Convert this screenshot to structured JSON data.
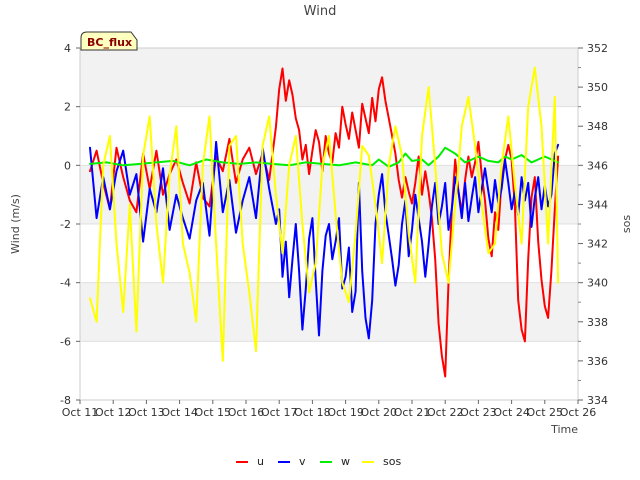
{
  "chart_data": {
    "type": "line",
    "title": "Wind",
    "site_label": "BC_flux",
    "xlabel": "Time",
    "ylabel": "Wind (m/s)",
    "y2label": "sos",
    "xlim": [
      11,
      26
    ],
    "ylim": [
      -8,
      4
    ],
    "y2lim": [
      334,
      352
    ],
    "x_ticks": [
      11,
      12,
      13,
      14,
      15,
      16,
      17,
      18,
      19,
      20,
      21,
      22,
      23,
      24,
      25,
      26
    ],
    "x_tick_labels": [
      "Oct 11",
      "Oct 12",
      "Oct 13",
      "Oct 14",
      "Oct 15",
      "Oct 16",
      "Oct 17",
      "Oct 18",
      "Oct 19",
      "Oct 20",
      "Oct 21",
      "Oct 22",
      "Oct 23",
      "Oct 24",
      "Oct 25",
      "Oct 26"
    ],
    "y_ticks": [
      -8,
      -6,
      -4,
      -2,
      0,
      2,
      4
    ],
    "y2_ticks": [
      334,
      336,
      338,
      340,
      342,
      344,
      346,
      348,
      350,
      352
    ],
    "grid_bands": true,
    "legend_position": "bottom-center",
    "series": [
      {
        "name": "u",
        "axis": "left",
        "color": "#ff0000",
        "x": [
          11.3,
          11.5,
          11.7,
          11.9,
          12.1,
          12.3,
          12.5,
          12.7,
          12.9,
          13.1,
          13.3,
          13.5,
          13.7,
          13.9,
          14.1,
          14.3,
          14.5,
          14.7,
          14.9,
          15.1,
          15.3,
          15.5,
          15.7,
          15.9,
          16.1,
          16.3,
          16.5,
          16.7,
          16.9,
          17.0,
          17.1,
          17.2,
          17.3,
          17.4,
          17.5,
          17.6,
          17.7,
          17.8,
          17.9,
          18.0,
          18.1,
          18.2,
          18.3,
          18.4,
          18.5,
          18.6,
          18.7,
          18.8,
          18.9,
          19.0,
          19.1,
          19.2,
          19.3,
          19.4,
          19.5,
          19.6,
          19.7,
          19.8,
          19.9,
          20.0,
          20.1,
          20.2,
          20.3,
          20.4,
          20.5,
          20.6,
          20.7,
          20.8,
          20.9,
          21.0,
          21.1,
          21.2,
          21.3,
          21.4,
          21.5,
          21.6,
          21.7,
          21.8,
          21.9,
          22.0,
          22.1,
          22.2,
          22.3,
          22.4,
          22.5,
          22.6,
          22.7,
          22.8,
          22.9,
          23.0,
          23.1,
          23.2,
          23.3,
          23.4,
          23.5,
          23.6,
          23.7,
          23.8,
          23.9,
          24.0,
          24.1,
          24.2,
          24.3,
          24.4,
          24.5,
          24.6,
          24.7,
          24.8,
          24.9,
          25.0,
          25.1,
          25.2,
          25.3,
          25.4
        ],
        "values": [
          -0.2,
          0.5,
          -0.6,
          -1.5,
          0.6,
          -0.4,
          -1.2,
          -1.6,
          0.4,
          -0.8,
          0.5,
          -1.0,
          -0.3,
          0.2,
          -0.6,
          -1.3,
          0.1,
          -1.1,
          -1.4,
          0.3,
          -0.2,
          0.9,
          -0.6,
          0.2,
          0.6,
          -0.3,
          0.4,
          -0.5,
          1.3,
          2.6,
          3.3,
          2.2,
          2.9,
          2.4,
          1.6,
          1.2,
          0.2,
          0.7,
          -0.3,
          0.5,
          1.2,
          0.8,
          -0.2,
          1.0,
          0.4,
          0.1,
          1.1,
          0.6,
          2.0,
          1.4,
          0.9,
          1.8,
          1.2,
          0.6,
          2.1,
          1.6,
          1.1,
          2.3,
          1.5,
          2.6,
          3.0,
          2.2,
          1.6,
          1.0,
          0.4,
          -0.5,
          -1.1,
          -0.4,
          -0.9,
          -1.3,
          -0.6,
          0.3,
          -1.0,
          -0.2,
          -0.9,
          -1.8,
          -3.2,
          -5.4,
          -6.5,
          -7.2,
          -4.0,
          -1.5,
          0.2,
          -0.9,
          -1.6,
          -0.5,
          0.3,
          -0.4,
          0.1,
          0.8,
          -0.3,
          -1.2,
          -2.5,
          -3.1,
          -1.6,
          -2.2,
          -0.5,
          0.2,
          0.7,
          0.2,
          -1.4,
          -4.6,
          -5.6,
          -6.0,
          -3.2,
          -1.1,
          -0.4,
          -2.6,
          -3.9,
          -4.8,
          -5.2,
          -3.6,
          -1.5,
          0.3
        ]
      },
      {
        "name": "v",
        "axis": "left",
        "color": "#0000ff",
        "x": [
          11.3,
          11.5,
          11.7,
          11.9,
          12.1,
          12.3,
          12.5,
          12.7,
          12.9,
          13.1,
          13.3,
          13.5,
          13.7,
          13.9,
          14.1,
          14.3,
          14.5,
          14.7,
          14.9,
          15.1,
          15.3,
          15.5,
          15.7,
          15.9,
          16.1,
          16.3,
          16.5,
          16.7,
          16.9,
          17.0,
          17.1,
          17.2,
          17.3,
          17.4,
          17.5,
          17.6,
          17.7,
          17.8,
          17.9,
          18.0,
          18.1,
          18.2,
          18.3,
          18.4,
          18.5,
          18.6,
          18.7,
          18.8,
          18.9,
          19.0,
          19.1,
          19.2,
          19.3,
          19.4,
          19.5,
          19.6,
          19.7,
          19.8,
          19.9,
          20.0,
          20.1,
          20.2,
          20.3,
          20.4,
          20.5,
          20.6,
          20.7,
          20.8,
          20.9,
          21.0,
          21.1,
          21.2,
          21.3,
          21.4,
          21.5,
          21.6,
          21.7,
          21.8,
          21.9,
          22.0,
          22.1,
          22.2,
          22.3,
          22.4,
          22.5,
          22.6,
          22.7,
          22.8,
          22.9,
          23.0,
          23.1,
          23.2,
          23.3,
          23.4,
          23.5,
          23.6,
          23.7,
          23.8,
          23.9,
          24.0,
          24.1,
          24.2,
          24.3,
          24.4,
          24.5,
          24.6,
          24.7,
          24.8,
          24.9,
          25.0,
          25.1,
          25.2,
          25.3,
          25.4
        ],
        "values": [
          0.6,
          -1.8,
          -0.4,
          -1.5,
          -0.2,
          0.5,
          -1.0,
          -0.3,
          -2.6,
          -0.8,
          -1.6,
          -0.1,
          -2.2,
          -1.0,
          -1.8,
          -2.5,
          -1.2,
          -0.6,
          -2.4,
          0.8,
          -1.6,
          -0.5,
          -2.3,
          -1.2,
          -0.4,
          -1.8,
          0.6,
          -0.8,
          -2.0,
          -1.5,
          -3.8,
          -2.6,
          -4.5,
          -3.2,
          -2.0,
          -3.6,
          -5.6,
          -4.2,
          -2.5,
          -1.8,
          -3.9,
          -5.8,
          -3.6,
          -2.4,
          -2.0,
          -3.2,
          -2.6,
          -1.8,
          -4.2,
          -3.8,
          -2.8,
          -5.0,
          -4.3,
          -0.6,
          -3.6,
          -5.2,
          -5.9,
          -4.6,
          -2.0,
          -1.0,
          -0.3,
          -1.6,
          -2.4,
          -3.2,
          -4.1,
          -3.4,
          -2.0,
          -1.2,
          -3.1,
          -2.2,
          -1.0,
          -1.8,
          -2.6,
          -3.8,
          -2.7,
          -1.4,
          -0.6,
          -2.0,
          -1.4,
          -0.6,
          -2.2,
          -1.5,
          -0.4,
          -0.9,
          -1.8,
          -0.6,
          -1.9,
          -1.1,
          -0.4,
          -1.6,
          -0.8,
          -0.1,
          -0.9,
          -1.6,
          -0.5,
          -1.3,
          -0.8,
          0.2,
          -0.6,
          -1.5,
          -0.9,
          -1.7,
          -0.4,
          -1.2,
          -0.6,
          -2.1,
          -1.1,
          -0.4,
          -1.5,
          -0.7,
          -1.4,
          -1.0,
          0.4,
          0.7
        ]
      },
      {
        "name": "w",
        "axis": "left",
        "color": "#00ee00",
        "x": [
          11.3,
          11.8,
          12.3,
          12.8,
          13.3,
          13.8,
          14.3,
          14.8,
          15.3,
          15.8,
          16.3,
          16.8,
          17.3,
          17.8,
          18.3,
          18.8,
          19.3,
          19.8,
          20.0,
          20.3,
          20.6,
          20.8,
          21.0,
          21.3,
          21.5,
          21.8,
          22.0,
          22.3,
          22.6,
          22.8,
          23.0,
          23.3,
          23.6,
          23.8,
          24.0,
          24.3,
          24.6,
          24.8,
          25.0,
          25.3,
          25.4
        ],
        "values": [
          0.05,
          0.1,
          0.0,
          0.05,
          0.1,
          0.15,
          0.0,
          0.2,
          0.1,
          0.05,
          0.1,
          0.05,
          0.0,
          0.1,
          0.05,
          0.0,
          0.1,
          0.0,
          0.2,
          -0.05,
          0.1,
          0.4,
          0.15,
          0.2,
          0.0,
          0.3,
          0.6,
          0.4,
          0.1,
          0.2,
          0.3,
          0.15,
          0.1,
          0.3,
          0.2,
          0.35,
          0.1,
          0.2,
          0.3,
          0.15,
          0.1
        ]
      },
      {
        "name": "sos",
        "axis": "right",
        "color": "#ffff00",
        "x": [
          11.3,
          11.5,
          11.7,
          11.9,
          12.1,
          12.3,
          12.5,
          12.7,
          12.9,
          13.1,
          13.3,
          13.5,
          13.7,
          13.9,
          14.1,
          14.3,
          14.5,
          14.7,
          14.9,
          15.1,
          15.3,
          15.5,
          15.7,
          15.9,
          16.1,
          16.3,
          16.5,
          16.7,
          16.9,
          17.1,
          17.3,
          17.5,
          17.7,
          17.9,
          18.1,
          18.3,
          18.5,
          18.7,
          18.9,
          19.1,
          19.3,
          19.5,
          19.7,
          19.9,
          20.1,
          20.3,
          20.5,
          20.7,
          20.9,
          21.1,
          21.3,
          21.5,
          21.7,
          21.9,
          22.1,
          22.3,
          22.5,
          22.7,
          22.9,
          23.1,
          23.3,
          23.5,
          23.7,
          23.9,
          24.1,
          24.3,
          24.5,
          24.7,
          24.9,
          25.1,
          25.3,
          25.4
        ],
        "values": [
          339.2,
          338.0,
          346.0,
          347.5,
          342.0,
          338.5,
          344.0,
          337.5,
          346.5,
          348.5,
          343.0,
          340.0,
          345.5,
          348.0,
          342.0,
          340.5,
          338.0,
          346.0,
          348.5,
          342.0,
          336.0,
          347.0,
          347.5,
          342.0,
          339.5,
          336.5,
          347.0,
          348.5,
          344.5,
          341.5,
          346.0,
          347.5,
          343.0,
          339.5,
          341.0,
          346.0,
          347.5,
          343.5,
          340.0,
          339.0,
          342.5,
          347.0,
          346.5,
          344.0,
          341.0,
          346.0,
          348.0,
          346.5,
          342.5,
          340.0,
          347.5,
          350.0,
          346.0,
          341.5,
          340.0,
          344.0,
          348.0,
          349.5,
          347.0,
          344.0,
          341.5,
          342.0,
          346.0,
          348.5,
          345.0,
          342.0,
          349.0,
          351.0,
          348.0,
          342.0,
          349.5,
          340.0
        ]
      }
    ]
  }
}
